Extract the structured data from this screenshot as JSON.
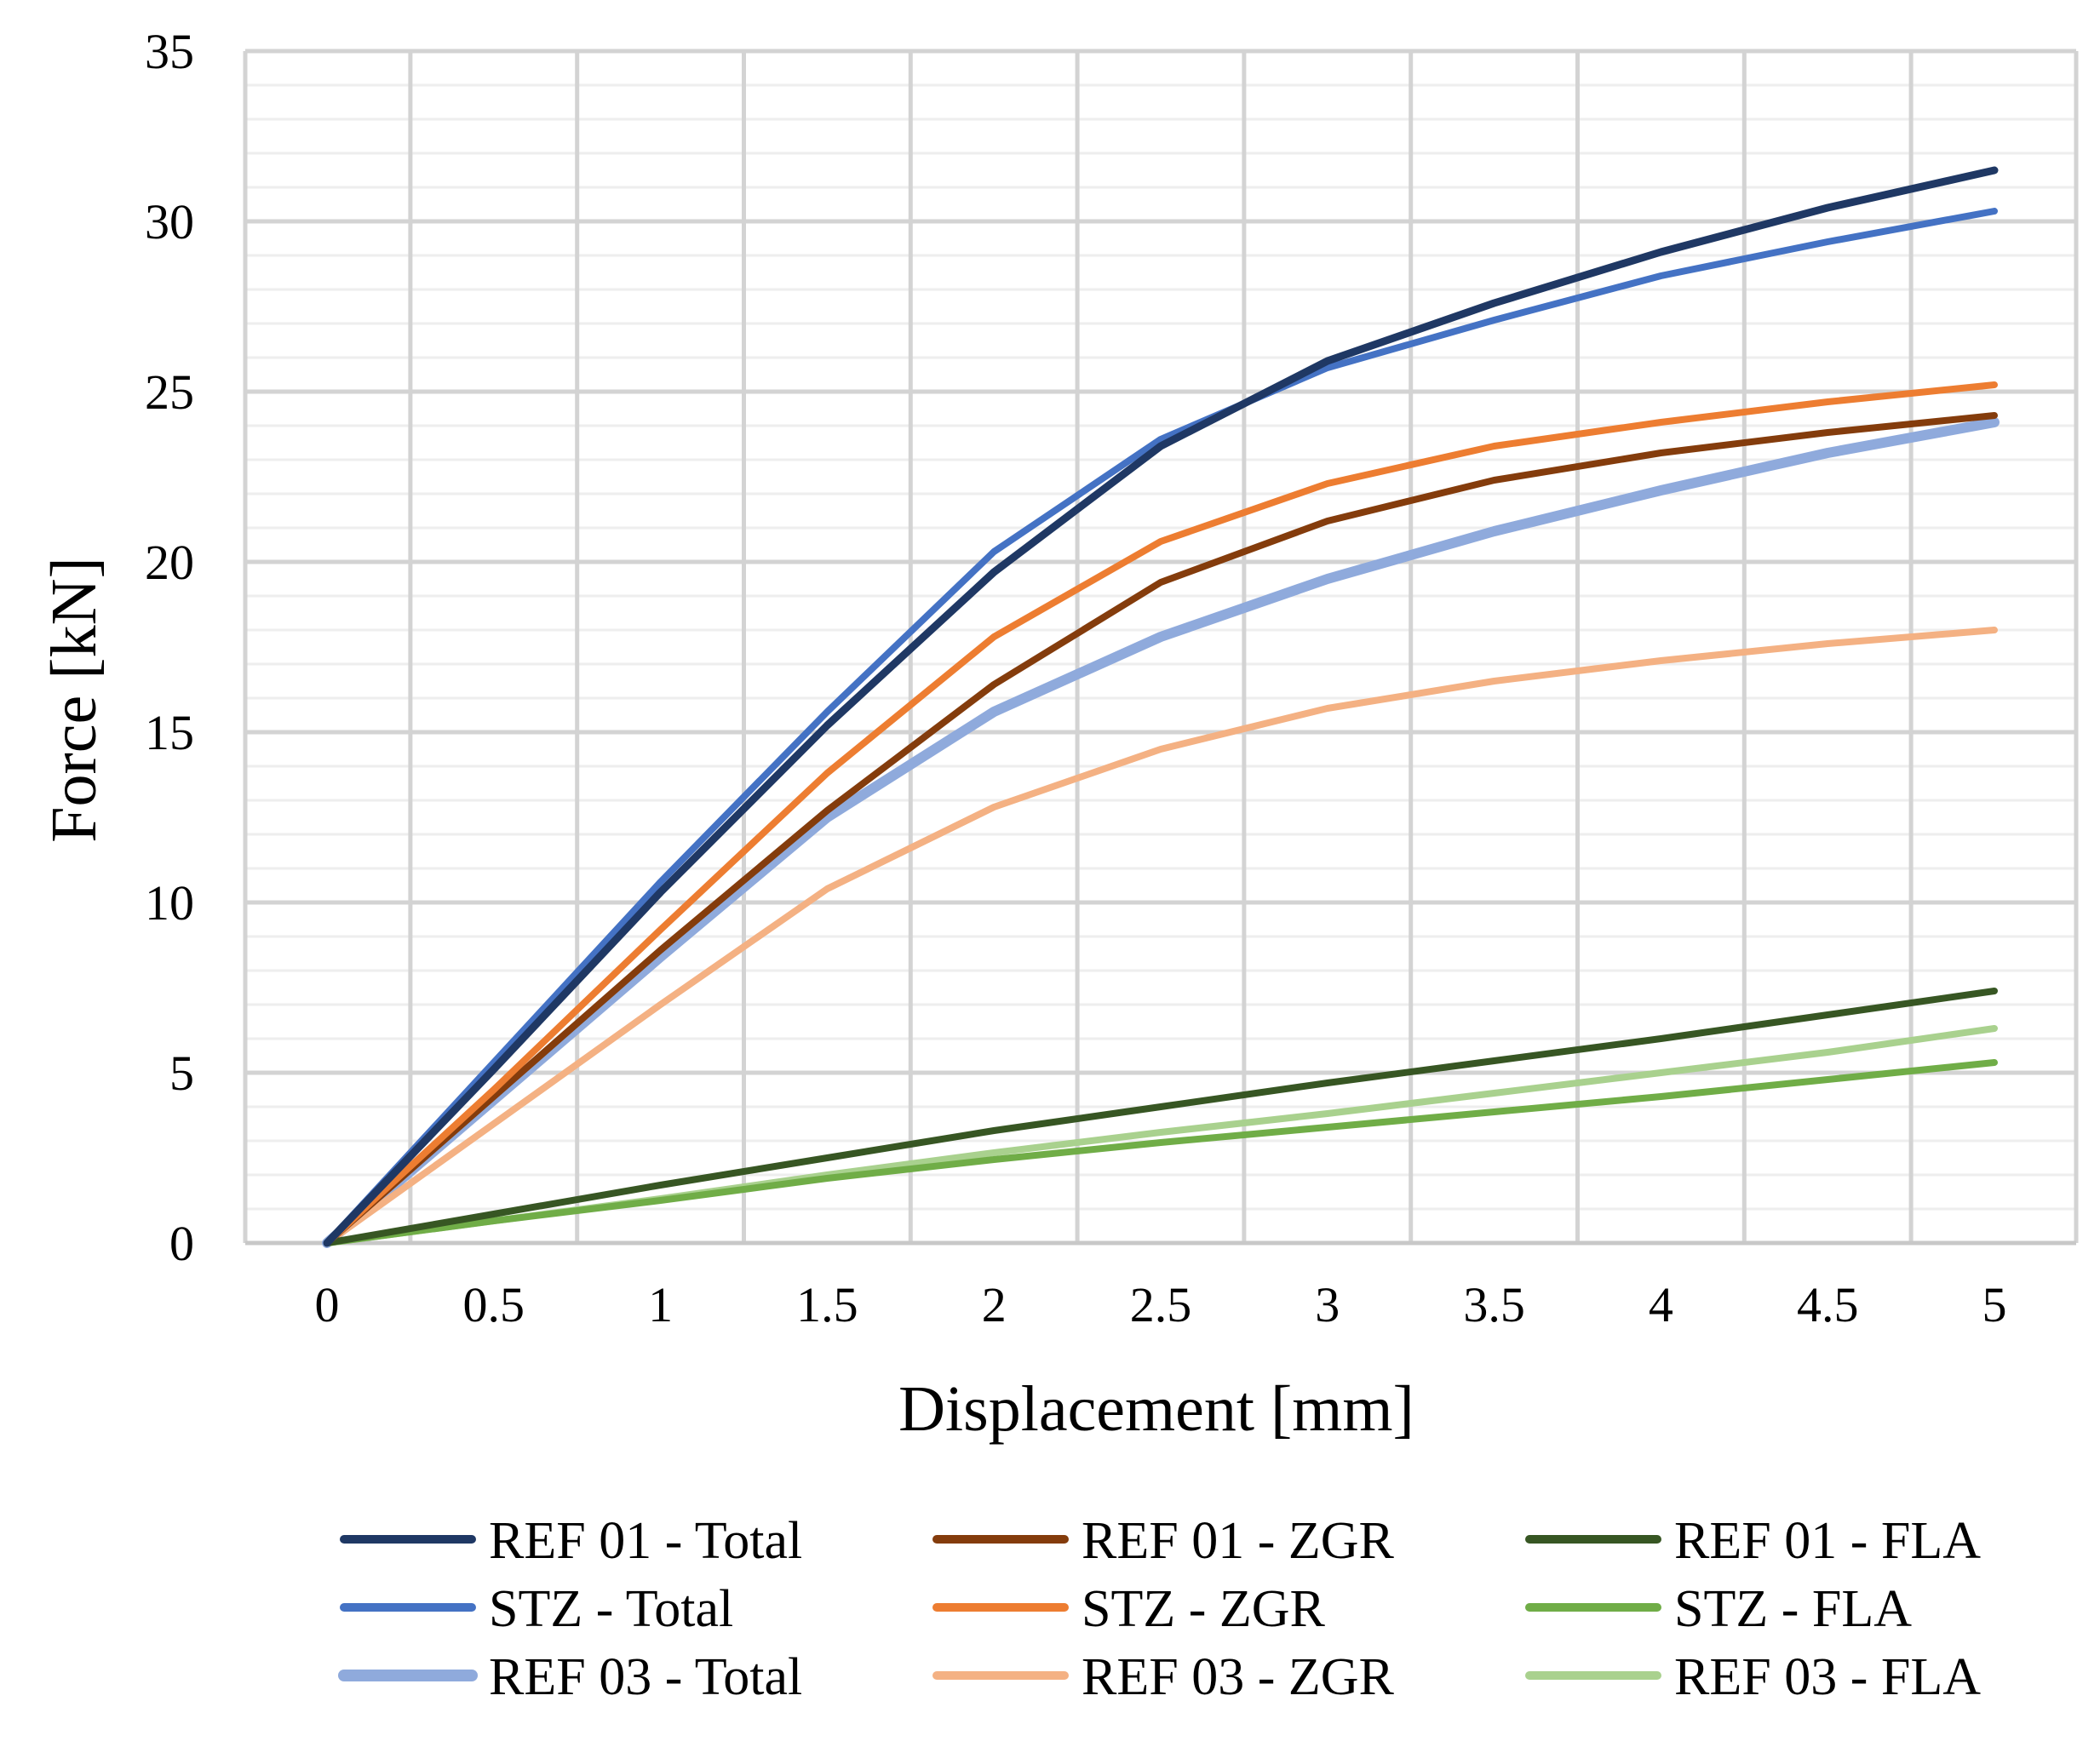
{
  "chart_data": {
    "type": "line",
    "title": "",
    "xlabel": "Displacement [mm]",
    "ylabel": "Force [kN]",
    "xlim": [
      0,
      5
    ],
    "ylim": [
      0,
      35
    ],
    "x_ticks": [
      "0",
      "0.5",
      "1",
      "1.5",
      "2",
      "2.5",
      "3",
      "3.5",
      "4",
      "4.5",
      "5"
    ],
    "y_ticks": [
      "0",
      "5",
      "10",
      "15",
      "20",
      "25",
      "30",
      "35"
    ],
    "x": [
      0,
      0.5,
      1,
      1.5,
      2,
      2.5,
      3,
      3.5,
      4,
      4.5,
      5
    ],
    "grid": true,
    "legend_position": "bottom",
    "series": [
      {
        "name": "REF 01 - Total",
        "color": "#1f3864",
        "width": 9,
        "values": [
          0,
          5.1,
          10.3,
          15.2,
          19.7,
          23.4,
          25.9,
          27.6,
          29.1,
          30.4,
          31.5
        ]
      },
      {
        "name": "REF 01 - ZGR",
        "color": "#843c0c",
        "width": 8,
        "values": [
          0,
          4.3,
          8.6,
          12.7,
          16.4,
          19.4,
          21.2,
          22.4,
          23.2,
          23.8,
          24.3
        ]
      },
      {
        "name": "REF 01 - FLA",
        "color": "#375623",
        "width": 8,
        "values": [
          0,
          0.85,
          1.7,
          2.5,
          3.3,
          4.0,
          4.7,
          5.35,
          6.0,
          6.7,
          7.4
        ]
      },
      {
        "name": "STZ - Total",
        "color": "#4472c4",
        "width": 8,
        "values": [
          0,
          5.3,
          10.6,
          15.6,
          20.3,
          23.6,
          25.7,
          27.1,
          28.4,
          29.4,
          30.3
        ]
      },
      {
        "name": "STZ - ZGR",
        "color": "#ed7d31",
        "width": 8,
        "values": [
          0,
          4.5,
          9.2,
          13.8,
          17.8,
          20.6,
          22.3,
          23.4,
          24.1,
          24.7,
          25.2
        ]
      },
      {
        "name": "STZ - FLA",
        "color": "#70ad47",
        "width": 8,
        "values": [
          0,
          0.65,
          1.25,
          1.9,
          2.45,
          2.95,
          3.4,
          3.85,
          4.3,
          4.8,
          5.3
        ]
      },
      {
        "name": "REF 03 - Total",
        "color": "#8faadc",
        "width": 12,
        "values": [
          0,
          4.2,
          8.4,
          12.5,
          15.6,
          17.8,
          19.5,
          20.9,
          22.1,
          23.2,
          24.1
        ]
      },
      {
        "name": "REF 03 - ZGR",
        "color": "#f4b183",
        "width": 8,
        "values": [
          0,
          3.5,
          7.0,
          10.4,
          12.8,
          14.5,
          15.7,
          16.5,
          17.1,
          17.6,
          18.0
        ]
      },
      {
        "name": "REF 03 - FLA",
        "color": "#a9d18e",
        "width": 8,
        "values": [
          0,
          0.65,
          1.3,
          2.0,
          2.65,
          3.25,
          3.8,
          4.4,
          5.0,
          5.6,
          6.3
        ]
      }
    ]
  }
}
